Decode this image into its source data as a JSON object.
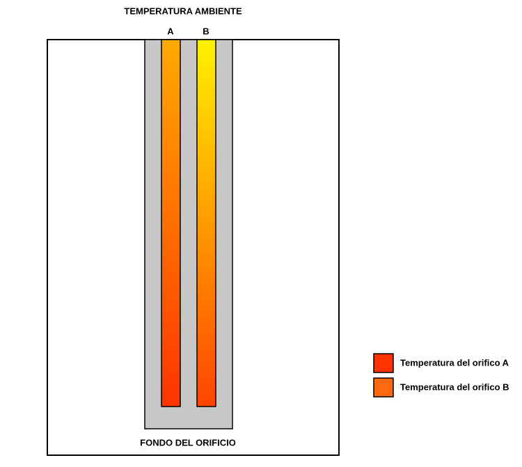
{
  "header": {
    "title": "TEMPERATURA AMBIENTE"
  },
  "holes": [
    {
      "label": "A"
    },
    {
      "label": "B"
    }
  ],
  "footer": {
    "label": "FONDO DEL ORIFICIO"
  },
  "legend": [
    {
      "label": "Temperatura del orifico A"
    },
    {
      "label": "Temperatura del orifico B"
    }
  ]
}
